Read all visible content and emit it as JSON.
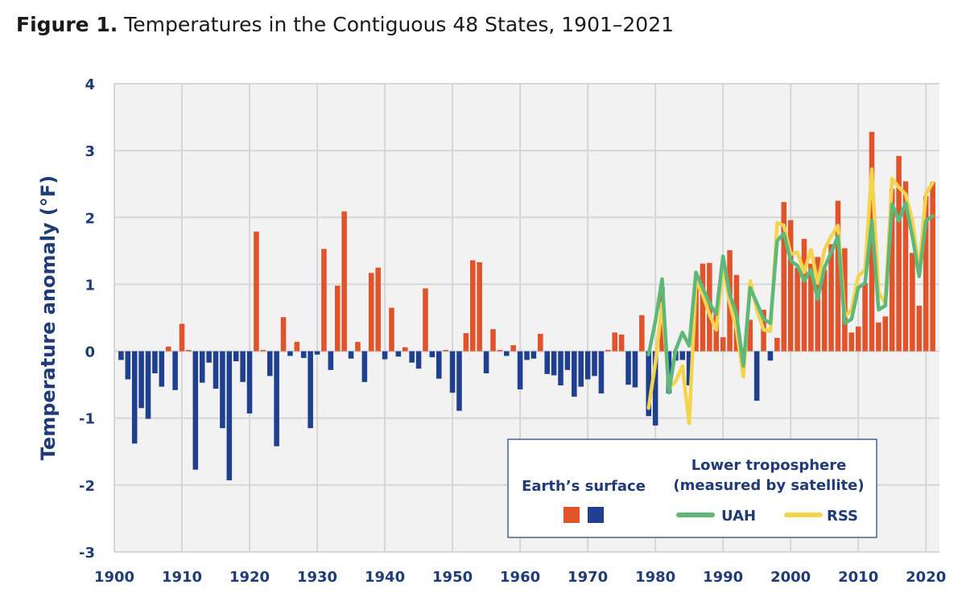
{
  "figure": {
    "label": "Figure 1.",
    "title": "Temperatures in the Contiguous 48 States, 1901–2021"
  },
  "colors": {
    "warm": "#e0532b",
    "cool": "#1f3f8f",
    "uah": "#5db87a",
    "rss": "#f4d44c",
    "axis_text": "#1f3c78",
    "plot_bg": "#f2f2f2",
    "grid": "#d6d6d6"
  },
  "chart_data": {
    "type": "bar",
    "title": "Temperatures in the Contiguous 48 States, 1901–2021",
    "ylabel": "Temperature anomaly (°F)",
    "xlabel": "",
    "xlim": [
      1900,
      2022
    ],
    "ylim": [
      -3,
      4
    ],
    "grid": true,
    "x_ticks": [
      "1900",
      "1910",
      "1920",
      "1930",
      "1940",
      "1950",
      "1960",
      "1970",
      "1980",
      "1990",
      "2000",
      "2010",
      "2020"
    ],
    "y_ticks": [
      "4",
      "3",
      "2",
      "1",
      "0",
      "-1",
      "-2",
      "-3"
    ],
    "legend": {
      "placement": "bottom-right",
      "surface_title": "Earth’s surface",
      "lt_title_1": "Lower troposphere",
      "lt_title_2": "(measured by satellite)",
      "uah_label": "UAH",
      "rss_label": "RSS"
    },
    "surface": {
      "name": "Earth’s surface",
      "years": [
        1901,
        1902,
        1903,
        1904,
        1905,
        1906,
        1907,
        1908,
        1909,
        1910,
        1911,
        1912,
        1913,
        1914,
        1915,
        1916,
        1917,
        1918,
        1919,
        1920,
        1921,
        1922,
        1923,
        1924,
        1925,
        1926,
        1927,
        1928,
        1929,
        1930,
        1931,
        1932,
        1933,
        1934,
        1935,
        1936,
        1937,
        1938,
        1939,
        1940,
        1941,
        1942,
        1943,
        1944,
        1945,
        1946,
        1947,
        1948,
        1949,
        1950,
        1951,
        1952,
        1953,
        1954,
        1955,
        1956,
        1957,
        1958,
        1959,
        1960,
        1961,
        1962,
        1963,
        1964,
        1965,
        1966,
        1967,
        1968,
        1969,
        1970,
        1971,
        1972,
        1973,
        1974,
        1975,
        1976,
        1977,
        1978,
        1979,
        1980,
        1981,
        1982,
        1983,
        1984,
        1985,
        1986,
        1987,
        1988,
        1989,
        1990,
        1991,
        1992,
        1993,
        1994,
        1995,
        1996,
        1997,
        1998,
        1999,
        2000,
        2001,
        2002,
        2003,
        2004,
        2005,
        2006,
        2007,
        2008,
        2009,
        2010,
        2011,
        2012,
        2013,
        2014,
        2015,
        2016,
        2017,
        2018,
        2019,
        2020,
        2021
      ],
      "values": [
        -0.13,
        -0.42,
        -1.38,
        -0.85,
        -1.01,
        -0.33,
        -0.53,
        0.07,
        -0.58,
        0.41,
        0.02,
        -1.77,
        -0.47,
        -0.17,
        -0.56,
        -1.15,
        -1.93,
        -0.15,
        -0.46,
        -0.93,
        1.79,
        0.02,
        -0.37,
        -1.42,
        0.51,
        -0.07,
        0.14,
        -0.1,
        -1.15,
        -0.05,
        1.53,
        -0.28,
        0.98,
        2.09,
        -0.11,
        0.14,
        -0.46,
        1.17,
        1.25,
        -0.12,
        0.65,
        -0.08,
        0.06,
        -0.17,
        -0.26,
        0.94,
        -0.09,
        -0.41,
        0.02,
        -0.62,
        -0.89,
        0.27,
        1.36,
        1.33,
        -0.33,
        0.33,
        0.02,
        -0.07,
        0.09,
        -0.57,
        -0.13,
        -0.11,
        0.26,
        -0.34,
        -0.36,
        -0.51,
        -0.28,
        -0.68,
        -0.53,
        -0.42,
        -0.37,
        -0.63,
        0.02,
        0.28,
        0.25,
        -0.5,
        -0.54,
        0.54,
        -0.97,
        -1.11,
        0.96,
        -0.63,
        -0.14,
        -0.13,
        -0.51,
        1.02,
        1.31,
        1.32,
        0.6,
        0.21,
        1.51,
        1.14,
        -0.17,
        0.47,
        -0.74,
        0.62,
        -0.14,
        0.2,
        2.23,
        1.96,
        1.25,
        1.68,
        1.31,
        1.41,
        1.22,
        1.6,
        2.25,
        1.54,
        0.28,
        0.37,
        1.02,
        3.28,
        0.43,
        0.52,
        2.43,
        2.92,
        2.54,
        1.47,
        0.68,
        2.32,
        2.53
      ]
    },
    "uah": {
      "name": "UAH",
      "years": [
        1979,
        1980,
        1981,
        1982,
        1983,
        1984,
        1985,
        1986,
        1987,
        1988,
        1989,
        1990,
        1991,
        1992,
        1993,
        1994,
        1995,
        1996,
        1997,
        1998,
        1999,
        2000,
        2001,
        2002,
        2003,
        2004,
        2005,
        2006,
        2007,
        2008,
        2009,
        2010,
        2011,
        2012,
        2013,
        2014,
        2015,
        2016,
        2017,
        2018,
        2019,
        2020,
        2021
      ],
      "values": [
        -0.05,
        0.45,
        1.08,
        -0.62,
        0.02,
        0.28,
        0.08,
        1.18,
        0.95,
        0.72,
        0.55,
        1.42,
        0.85,
        0.55,
        -0.22,
        0.95,
        0.72,
        0.48,
        0.42,
        1.65,
        1.76,
        1.35,
        1.28,
        1.05,
        1.22,
        0.78,
        1.25,
        1.48,
        1.72,
        0.42,
        0.48,
        0.95,
        1.02,
        1.95,
        0.62,
        0.68,
        2.2,
        1.95,
        2.22,
        1.72,
        1.12,
        1.95,
        2.02
      ]
    },
    "rss": {
      "name": "RSS",
      "years": [
        1979,
        1980,
        1981,
        1982,
        1983,
        1984,
        1985,
        1986,
        1987,
        1988,
        1989,
        1990,
        1991,
        1992,
        1993,
        1994,
        1995,
        1996,
        1997,
        1998,
        1999,
        2000,
        2001,
        2002,
        2003,
        2004,
        2005,
        2006,
        2007,
        2008,
        2009,
        2010,
        2011,
        2012,
        2013,
        2014,
        2015,
        2016,
        2017,
        2018,
        2019,
        2020,
        2021
      ],
      "values": [
        -0.85,
        -0.18,
        0.72,
        -0.55,
        -0.45,
        -0.22,
        -1.08,
        1.05,
        0.85,
        0.55,
        0.32,
        1.28,
        0.72,
        0.32,
        -0.38,
        1.05,
        0.62,
        0.32,
        0.3,
        1.92,
        1.88,
        1.45,
        1.48,
        1.18,
        1.52,
        1.02,
        1.52,
        1.72,
        1.88,
        0.52,
        0.62,
        1.12,
        1.22,
        2.72,
        0.88,
        0.72,
        2.58,
        2.45,
        2.35,
        1.95,
        1.22,
        2.35,
        2.52
      ]
    }
  }
}
